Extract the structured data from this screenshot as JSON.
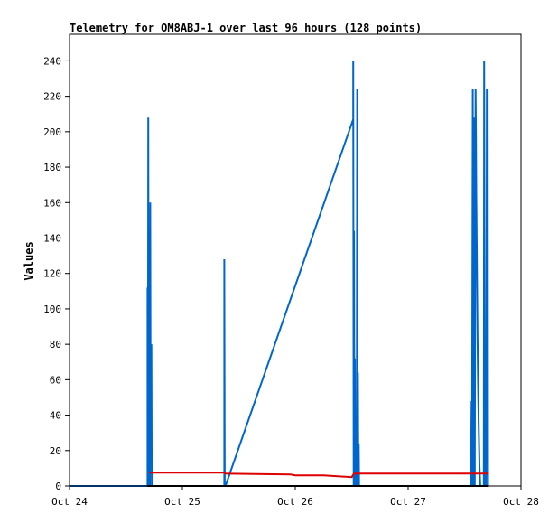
{
  "chart_data": {
    "type": "line",
    "title": "Telemetry for OM8ABJ-1 over last 96 hours (128 points)",
    "ylabel": "Values",
    "xlabel": "",
    "ylim": [
      0,
      255
    ],
    "xlim": [
      "2023-10-24T00:00",
      "2023-10-28T00:00"
    ],
    "y_ticks": [
      0,
      20,
      40,
      60,
      80,
      100,
      120,
      140,
      160,
      180,
      200,
      220,
      240
    ],
    "x_ticks": [
      {
        "value": "2023-10-24T00:00",
        "label": "Oct 24"
      },
      {
        "value": "2023-10-25T00:00",
        "label": "Oct 25"
      },
      {
        "value": "2023-10-26T00:00",
        "label": "Oct 26"
      },
      {
        "value": "2023-10-27T00:00",
        "label": "Oct 27"
      },
      {
        "value": "2023-10-28T00:00",
        "label": "Oct 28"
      }
    ],
    "grid": false,
    "series": [
      {
        "color": "#0066cc",
        "points": [
          [
            "2023-10-24T00:00",
            0
          ],
          [
            "2023-10-24T16:35",
            0
          ],
          [
            "2023-10-24T16:35",
            112
          ],
          [
            "2023-10-24T16:40",
            0
          ],
          [
            "2023-10-24T16:45",
            208
          ],
          [
            "2023-10-24T16:50",
            0
          ],
          [
            "2023-10-24T17:00",
            120
          ],
          [
            "2023-10-24T17:05",
            0
          ],
          [
            "2023-10-24T17:10",
            160
          ],
          [
            "2023-10-24T17:15",
            40
          ],
          [
            "2023-10-24T17:25",
            80
          ],
          [
            "2023-10-24T17:30",
            0
          ],
          [
            "2023-10-25T08:55",
            0
          ],
          [
            "2023-10-25T08:55",
            128
          ],
          [
            "2023-10-25T09:00",
            0
          ],
          [
            "2023-10-25T09:10",
            0
          ],
          [
            "2023-10-26T12:20",
            207
          ],
          [
            "2023-10-26T12:20",
            240
          ],
          [
            "2023-10-26T12:25",
            0
          ],
          [
            "2023-10-26T12:30",
            144
          ],
          [
            "2023-10-26T12:35",
            0
          ],
          [
            "2023-10-26T12:40",
            72
          ],
          [
            "2023-10-26T12:45",
            0
          ],
          [
            "2023-10-26T13:05",
            0
          ],
          [
            "2023-10-26T13:10",
            224
          ],
          [
            "2023-10-26T13:15",
            0
          ],
          [
            "2023-10-26T13:20",
            64
          ],
          [
            "2023-10-26T13:25",
            0
          ],
          [
            "2023-10-26T13:30",
            24
          ],
          [
            "2023-10-26T13:35",
            0
          ],
          [
            "2023-10-27T13:20",
            0
          ],
          [
            "2023-10-27T13:25",
            24
          ],
          [
            "2023-10-27T13:30",
            48
          ],
          [
            "2023-10-27T13:35",
            0
          ],
          [
            "2023-10-27T13:45",
            224
          ],
          [
            "2023-10-27T13:50",
            0
          ],
          [
            "2023-10-27T14:00",
            208
          ],
          [
            "2023-10-27T14:05",
            104
          ],
          [
            "2023-10-27T14:10",
            0
          ],
          [
            "2023-10-27T14:20",
            224
          ],
          [
            "2023-10-27T14:25",
            200
          ],
          [
            "2023-10-27T14:30",
            164
          ],
          [
            "2023-10-27T14:40",
            112
          ],
          [
            "2023-10-27T14:45",
            88
          ],
          [
            "2023-10-27T14:50",
            64
          ],
          [
            "2023-10-27T15:00",
            36
          ],
          [
            "2023-10-27T15:10",
            12
          ],
          [
            "2023-10-27T15:20",
            0
          ],
          [
            "2023-10-27T16:05",
            0
          ],
          [
            "2023-10-27T16:10",
            240
          ],
          [
            "2023-10-27T16:20",
            0
          ],
          [
            "2023-10-27T16:35",
            0
          ],
          [
            "2023-10-27T16:40",
            80
          ],
          [
            "2023-10-27T16:45",
            224
          ],
          [
            "2023-10-27T16:50",
            80
          ],
          [
            "2023-10-27T16:55",
            224
          ],
          [
            "2023-10-27T17:00",
            0
          ],
          [
            "2023-10-27T17:05",
            0
          ]
        ]
      },
      {
        "color": "#dd0000",
        "points": [
          [
            "2023-10-24T17:00",
            7.5
          ],
          [
            "2023-10-25T09:00",
            7.5
          ],
          [
            "2023-10-25T09:10",
            7
          ],
          [
            "2023-10-25T23:00",
            6.5
          ],
          [
            "2023-10-26T00:00",
            6
          ],
          [
            "2023-10-26T06:00",
            6
          ],
          [
            "2023-10-26T12:00",
            5
          ],
          [
            "2023-10-26T12:30",
            7
          ],
          [
            "2023-10-27T12:00",
            7
          ],
          [
            "2023-10-27T17:10",
            7
          ]
        ]
      },
      {
        "color": "#000000",
        "points": [
          [
            "2023-10-24T16:30",
            0
          ],
          [
            "2023-10-27T17:10",
            0
          ]
        ]
      }
    ]
  }
}
